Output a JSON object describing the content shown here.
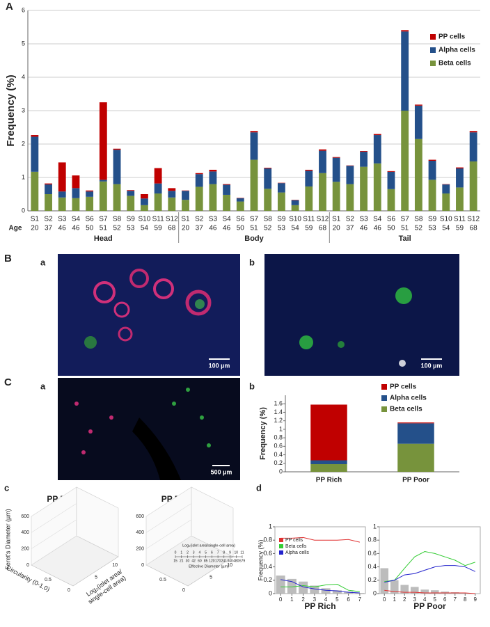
{
  "figure": {
    "panel_A": "A",
    "panel_B": "B",
    "panel_Ba": "a",
    "panel_Bb": "b",
    "panel_C": "C",
    "panel_Ca": "a",
    "panel_Cb": "b",
    "panel_c": "c",
    "panel_d": "d",
    "scale_Ba": "100 µm",
    "scale_Bb": "100 µm",
    "scale_Ca": "500 µm",
    "surface_plots": [
      {
        "title": "PP Rich",
        "zlabel": "Feret's Diameter (µm)",
        "ylabel": "Circularity (0-1.0)",
        "xlabel": [
          "Log₂(islet area/",
          "single-cell area)"
        ],
        "zticks": [
          0,
          200,
          400,
          600
        ],
        "yticks": [
          0.5,
          0
        ],
        "xticks": [
          5,
          10
        ]
      },
      {
        "title": "PP Poor",
        "zticks": [
          0,
          200,
          400,
          600
        ],
        "yticks": [
          0.5,
          0
        ],
        "xticks": [
          5,
          10
        ]
      }
    ],
    "diameter_scale": {
      "title": "Log₂(islet area/single-cell area)",
      "log_ticks": [
        0,
        1,
        2,
        3,
        4,
        5,
        6,
        7,
        8,
        9,
        10,
        11
      ],
      "diameters": [
        15,
        21,
        30,
        42,
        60,
        85,
        120,
        170,
        241,
        340,
        480,
        679
      ],
      "label": "Effective Diameter (µm)"
    }
  },
  "chart_data": [
    {
      "type": "bar",
      "stacked": true,
      "y_label": "Frequency (%)",
      "x_label": "Age",
      "grid": true,
      "legend": "upper right",
      "ylim": [
        0,
        6
      ],
      "yticks": [
        0,
        1,
        2,
        3,
        4,
        5,
        6
      ],
      "groups": [
        "Head",
        "Body",
        "Tail"
      ],
      "categories": [
        "S1",
        "S2",
        "S3",
        "S4",
        "S6",
        "S7",
        "S8",
        "S9",
        "S10",
        "S11",
        "S12",
        "S1",
        "S2",
        "S3",
        "S4",
        "S6",
        "S7",
        "S8",
        "S9",
        "S10",
        "S11",
        "S12",
        "S1",
        "S2",
        "S3",
        "S4",
        "S6",
        "S7",
        "S8",
        "S9",
        "S10",
        "S11",
        "S12"
      ],
      "ages": [
        "20",
        "37",
        "46",
        "46",
        "50",
        "51",
        "52",
        "53",
        "54",
        "59",
        "68",
        "20",
        "37",
        "46",
        "46",
        "50",
        "51",
        "52",
        "53",
        "54",
        "59",
        "68",
        "20",
        "37",
        "46",
        "46",
        "50",
        "51",
        "52",
        "53",
        "54",
        "59",
        "68"
      ],
      "series": [
        {
          "name": "PP cells",
          "color": "#c00000",
          "values": [
            0.05,
            0.03,
            0.87,
            0.38,
            0.03,
            2.32,
            0.03,
            0.02,
            0.13,
            0.46,
            0.08,
            0.01,
            0.03,
            0.05,
            0.02,
            0.01,
            0.04,
            0.02,
            0.01,
            0.01,
            0.03,
            0.04,
            0.02,
            0.01,
            0.02,
            0.03,
            0.02,
            0.04,
            0.03,
            0.03,
            0.01,
            0.03,
            0.04
          ]
        },
        {
          "name": "Alpha cells",
          "color": "#24508a",
          "values": [
            1.05,
            0.29,
            0.18,
            0.3,
            0.16,
            0.05,
            1.03,
            0.15,
            0.2,
            0.3,
            0.2,
            0.27,
            0.38,
            0.38,
            0.3,
            0.1,
            0.82,
            0.61,
            0.28,
            0.15,
            0.47,
            0.67,
            0.72,
            0.55,
            0.45,
            0.85,
            0.52,
            2.37,
            1.0,
            0.57,
            0.27,
            0.57,
            0.87
          ]
        },
        {
          "name": "Beta cells",
          "color": "#77933c",
          "values": [
            1.17,
            0.5,
            0.4,
            0.38,
            0.42,
            0.88,
            0.8,
            0.45,
            0.17,
            0.52,
            0.4,
            0.33,
            0.72,
            0.8,
            0.48,
            0.28,
            1.53,
            0.66,
            0.55,
            0.17,
            0.73,
            1.13,
            0.87,
            0.8,
            1.32,
            1.42,
            0.65,
            3.0,
            2.15,
            0.93,
            0.52,
            0.7,
            1.48
          ]
        }
      ]
    },
    {
      "type": "bar",
      "stacked": true,
      "y_label": "Frequency (%)",
      "grid": false,
      "legend": "upper right",
      "ylim": [
        0,
        1.8
      ],
      "yticks": [
        0,
        0.2,
        0.4,
        0.6,
        0.8,
        1,
        1.2,
        1.4,
        1.6
      ],
      "categories": [
        "PP Rich",
        "PP Poor"
      ],
      "series": [
        {
          "name": "PP cells",
          "color": "#c00000",
          "values": [
            1.31,
            0.02
          ]
        },
        {
          "name": "Alpha cells",
          "color": "#24508a",
          "values": [
            0.09,
            0.48
          ]
        },
        {
          "name": "Beta cells",
          "color": "#77933c",
          "values": [
            0.18,
            0.66
          ]
        }
      ]
    },
    {
      "type": "line",
      "y_label": "Frequency (%)",
      "x_label": "PP Rich",
      "legend": "upper left",
      "x": [
        0,
        1,
        2,
        3,
        4,
        5,
        6,
        7
      ],
      "xlim": [
        -0.5,
        7.5
      ],
      "xticks": [
        0,
        1,
        2,
        3,
        4,
        5,
        6,
        7
      ],
      "ylim": [
        0,
        1
      ],
      "yticks": [
        0,
        0.2,
        0.4,
        0.6,
        0.8,
        1
      ],
      "bar_color": "#b0b0b0",
      "bar_values": [
        0.27,
        0.22,
        0.18,
        0.12,
        0.08,
        0.05,
        0.03,
        0.01
      ],
      "series": [
        {
          "name": "PP cells",
          "color": "#e03030",
          "values": [
            0.83,
            0.83,
            0.84,
            0.8,
            0.8,
            0.8,
            0.81,
            0.77
          ]
        },
        {
          "name": "Beta cells",
          "color": "#33cc33",
          "values": [
            0.1,
            0.1,
            0.12,
            0.1,
            0.13,
            0.14,
            0.05,
            0.03
          ]
        },
        {
          "name": "Alpha cells",
          "color": "#2222cc",
          "values": [
            0.21,
            0.18,
            0.1,
            0.07,
            0.05,
            0.04,
            0.02,
            0.01
          ]
        }
      ]
    },
    {
      "type": "line",
      "x_label": "PP Poor",
      "x": [
        0,
        1,
        2,
        3,
        4,
        5,
        6,
        7,
        8,
        9
      ],
      "xlim": [
        -0.5,
        9.5
      ],
      "xticks": [
        0,
        1,
        2,
        3,
        4,
        5,
        6,
        7,
        8,
        9
      ],
      "ylim": [
        0,
        1
      ],
      "yticks": [
        0,
        0.2,
        0.4,
        0.6,
        0.8,
        1
      ],
      "bar_color": "#b0b0b0",
      "bar_values": [
        0.38,
        0.2,
        0.13,
        0.1,
        0.06,
        0.05,
        0.03,
        0.02,
        0.01,
        0.005
      ],
      "series": [
        {
          "color": "#e03030",
          "values": [
            0.05,
            0.03,
            0.02,
            0.02,
            0.01,
            0.01,
            0.01,
            0.01,
            0.01,
            0.0
          ]
        },
        {
          "color": "#33cc33",
          "values": [
            0.18,
            0.2,
            0.38,
            0.55,
            0.63,
            0.6,
            0.55,
            0.5,
            0.42,
            0.47
          ]
        },
        {
          "color": "#2222cc",
          "values": [
            0.17,
            0.2,
            0.28,
            0.3,
            0.35,
            0.4,
            0.42,
            0.42,
            0.4,
            0.33
          ]
        }
      ]
    }
  ]
}
